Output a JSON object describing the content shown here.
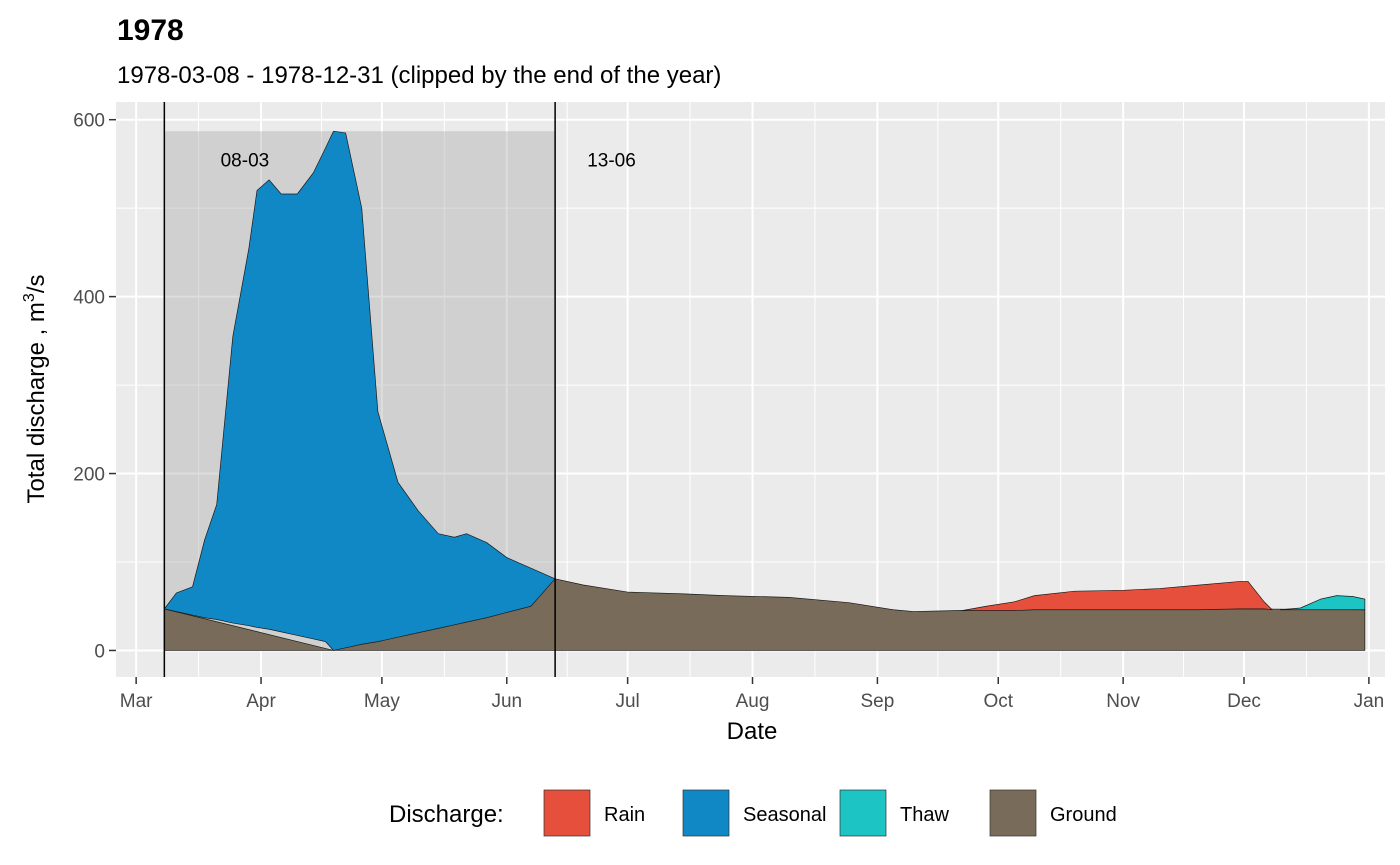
{
  "chart_data": {
    "type": "area",
    "title": "1978",
    "subtitle": "1978-03-08 - 1978-12-31 (clipped by the end of the year)",
    "xlabel": "Date",
    "ylabel": "Total discharge ,  m",
    "ylabel_sup": "3",
    "ylabel_tail": "/s",
    "xlim": [
      "1978-02-24",
      "1979-01-05"
    ],
    "ylim": [
      -30,
      620
    ],
    "x_ticks": [
      {
        "date": "1978-03-01",
        "label": "Mar"
      },
      {
        "date": "1978-04-01",
        "label": "Apr"
      },
      {
        "date": "1978-05-01",
        "label": "May"
      },
      {
        "date": "1978-06-01",
        "label": "Jun"
      },
      {
        "date": "1978-07-01",
        "label": "Jul"
      },
      {
        "date": "1978-08-01",
        "label": "Aug"
      },
      {
        "date": "1978-09-01",
        "label": "Sep"
      },
      {
        "date": "1978-10-01",
        "label": "Oct"
      },
      {
        "date": "1978-11-01",
        "label": "Nov"
      },
      {
        "date": "1978-12-01",
        "label": "Dec"
      },
      {
        "date": "1979-01-01",
        "label": "Jan"
      }
    ],
    "y_ticks": [
      0,
      200,
      400,
      600
    ],
    "grid": true,
    "flood_period": {
      "start": "1978-03-08",
      "end": "1978-06-13",
      "ymax": 587
    },
    "annotations": [
      {
        "text": "08-03",
        "date": "1978-03-28",
        "y": 555
      },
      {
        "text": "13-06",
        "date": "1978-06-27",
        "y": 555
      }
    ],
    "legend": {
      "title": "Discharge:",
      "position": "bottom"
    },
    "series": [
      {
        "name": "Ground",
        "color": "#786b59",
        "points": [
          [
            "1978-03-08",
            0,
            47
          ],
          [
            "1978-04-19",
            0,
            0
          ],
          [
            "1978-06-13",
            0,
            81
          ],
          [
            "1978-06-20",
            0,
            74
          ],
          [
            "1978-07-01",
            0,
            66
          ],
          [
            "1978-07-15",
            0,
            64
          ],
          [
            "1978-07-25",
            0,
            62
          ],
          [
            "1978-08-10",
            0,
            60
          ],
          [
            "1978-08-25",
            0,
            54
          ],
          [
            "1978-09-05",
            0,
            46
          ],
          [
            "1978-09-10",
            0,
            44
          ],
          [
            "1978-09-20",
            0,
            45
          ],
          [
            "1978-10-01",
            0,
            46
          ],
          [
            "1978-12-01",
            0,
            47
          ],
          [
            "1978-12-31",
            0,
            46
          ]
        ]
      },
      {
        "name": "Seasonal",
        "color": "#1188c6",
        "points": [
          [
            "1978-03-08",
            47,
            47
          ],
          [
            "1978-03-11",
            44,
            65
          ],
          [
            "1978-03-15",
            40,
            72
          ],
          [
            "1978-03-18",
            37,
            125
          ],
          [
            "1978-03-21",
            35,
            165
          ],
          [
            "1978-03-25",
            31,
            355
          ],
          [
            "1978-03-29",
            28,
            455
          ],
          [
            "1978-03-31",
            26,
            520
          ],
          [
            "1978-04-03",
            24,
            532
          ],
          [
            "1978-04-06",
            21,
            516
          ],
          [
            "1978-04-10",
            17,
            516
          ],
          [
            "1978-04-14",
            13,
            540
          ],
          [
            "1978-04-17",
            10,
            568
          ],
          [
            "1978-04-19",
            0,
            587
          ],
          [
            "1978-04-22",
            3,
            585
          ],
          [
            "1978-04-26",
            7,
            500
          ],
          [
            "1978-04-30",
            10,
            270
          ],
          [
            "1978-05-05",
            15,
            190
          ],
          [
            "1978-05-10",
            20,
            158
          ],
          [
            "1978-05-15",
            25,
            132
          ],
          [
            "1978-05-19",
            29,
            128
          ],
          [
            "1978-05-22",
            32,
            132
          ],
          [
            "1978-05-27",
            37,
            122
          ],
          [
            "1978-06-01",
            43,
            105
          ],
          [
            "1978-06-07",
            50,
            93
          ],
          [
            "1978-06-13",
            81,
            81
          ]
        ]
      },
      {
        "name": "Rain",
        "color": "#e64f3b",
        "points": [
          [
            "1978-09-22",
            45,
            45
          ],
          [
            "1978-09-28",
            45,
            50
          ],
          [
            "1978-10-05",
            45,
            55
          ],
          [
            "1978-10-10",
            46,
            62
          ],
          [
            "1978-10-20",
            46,
            67
          ],
          [
            "1978-11-01",
            46,
            68
          ],
          [
            "1978-11-10",
            46,
            70
          ],
          [
            "1978-11-20",
            46,
            74
          ],
          [
            "1978-11-30",
            47,
            78
          ],
          [
            "1978-12-02",
            47,
            78
          ],
          [
            "1978-12-06",
            47,
            55
          ],
          [
            "1978-12-08",
            46,
            46
          ]
        ]
      },
      {
        "name": "Thaw",
        "color": "#1cc4c4",
        "points": [
          [
            "1978-12-10",
            46,
            46
          ],
          [
            "1978-12-15",
            46,
            48
          ],
          [
            "1978-12-20",
            46,
            58
          ],
          [
            "1978-12-24",
            46,
            62
          ],
          [
            "1978-12-28",
            46,
            61
          ],
          [
            "1978-12-31",
            46,
            58
          ]
        ]
      }
    ],
    "legend_order": [
      "Rain",
      "Seasonal",
      "Thaw",
      "Ground"
    ]
  }
}
